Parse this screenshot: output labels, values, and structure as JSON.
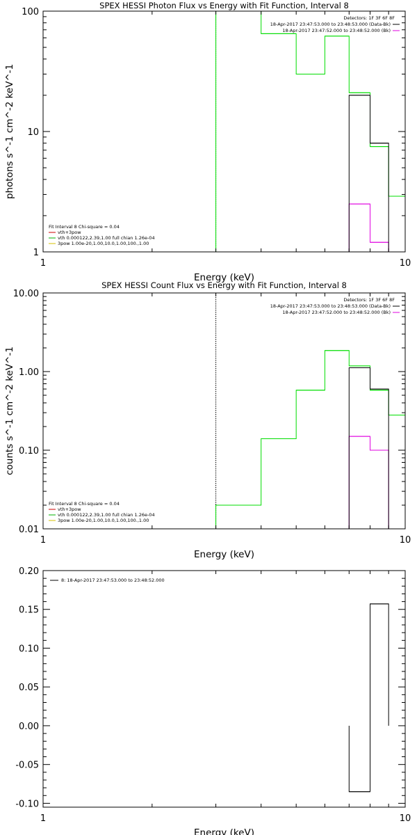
{
  "colors": {
    "data": "#000000",
    "model": "#00dd00",
    "bk": "#e000e0",
    "bk_legend": "#cc0000",
    "comp_thermal": "#00b000",
    "comp_power": "#d6c000",
    "vline_green": "#009000"
  },
  "chart_data": [
    {
      "type": "line",
      "title": "SPEX HESSI Photon Flux vs Energy with Fit Function, Interval 8",
      "xlabel": "Energy (keV)",
      "ylabel": "photons s^-1 cm^-2 keV^-1",
      "xscale": "log",
      "yscale": "log",
      "xlim": [
        1,
        10
      ],
      "ylim": [
        1,
        100
      ],
      "xticks": [
        {
          "v": 1,
          "label": "1"
        },
        {
          "v": 10,
          "label": "10"
        }
      ],
      "yticks": [
        {
          "v": 1,
          "label": "1"
        },
        {
          "v": 10,
          "label": "10"
        },
        {
          "v": 100,
          "label": "100"
        }
      ],
      "vline": {
        "x": 3.0,
        "style": "dotted-green"
      },
      "series": [
        {
          "role": "model",
          "bin_edges": [
            3,
            4,
            5,
            6,
            7,
            8,
            9,
            10
          ],
          "values": [
            100,
            65,
            30,
            62,
            21,
            7.5,
            2.9
          ]
        },
        {
          "role": "data",
          "bin_edges": [
            7,
            8,
            9
          ],
          "values": [
            20,
            8
          ]
        },
        {
          "role": "bk",
          "bin_edges": [
            7,
            8,
            9
          ],
          "values": [
            2.5,
            1.2
          ]
        }
      ],
      "legend_top": {
        "title": "Detectors: 1F 3F 6F 8F",
        "entries": [
          {
            "text": "18-Apr-2017 23:47:53.000 to 23:48:53.000 (Data-Bk)",
            "color_key": "data"
          },
          {
            "text": "18-Apr-2017 23:47:52.000 to 23:48:52.000 (Bk)",
            "color_key": "bk"
          }
        ]
      },
      "legend_bottom": {
        "title": "Fit Interval 8   Chi-square = 0.04",
        "entries": [
          {
            "text": "vth+3pow",
            "color_key": "bk_legend"
          },
          {
            "text": "vth 0.000122,2.39,1.00   full chian 1.26e-04",
            "color_key": "comp_thermal"
          },
          {
            "text": "3pow 1.00e-20,1.00,10.0,1.00,100.,1.00",
            "color_key": "comp_power"
          }
        ]
      }
    },
    {
      "type": "line",
      "title": "SPEX HESSI Count Flux vs Energy with Fit Function, Interval 8",
      "xlabel": "Energy (keV)",
      "ylabel": "counts s^-1 cm^-2 keV^-1",
      "xscale": "log",
      "yscale": "log",
      "xlim": [
        1,
        10
      ],
      "ylim": [
        0.01,
        10
      ],
      "xticks": [
        {
          "v": 1,
          "label": "1"
        },
        {
          "v": 10,
          "label": "10"
        }
      ],
      "yticks": [
        {
          "v": 0.01,
          "label": "0.01"
        },
        {
          "v": 0.1,
          "label": "0.10"
        },
        {
          "v": 1,
          "label": "1.00"
        },
        {
          "v": 10,
          "label": "10.00"
        }
      ],
      "vline": {
        "x": 3.0,
        "style": "dotted-black"
      },
      "series": [
        {
          "role": "model",
          "bin_edges": [
            3,
            4,
            5,
            6,
            7,
            8,
            9,
            10
          ],
          "values": [
            0.02,
            0.14,
            0.58,
            1.85,
            1.18,
            0.58,
            0.28
          ]
        },
        {
          "role": "data",
          "bin_edges": [
            7,
            8,
            9
          ],
          "values": [
            1.12,
            0.6
          ]
        },
        {
          "role": "bk",
          "bin_edges": [
            7,
            8,
            9
          ],
          "values": [
            0.15,
            0.1
          ]
        }
      ],
      "legend_top": {
        "title": "Detectors: 1F 3F 6F 8F",
        "entries": [
          {
            "text": "18-Apr-2017 23:47:53.000 to 23:48:53.000 (Data-Bk)",
            "color_key": "data"
          },
          {
            "text": "18-Apr-2017 23:47:52.000 to 23:48:52.000 (Bk)",
            "color_key": "bk"
          }
        ]
      },
      "legend_bottom": {
        "title": "Fit Interval 8   Chi-square = 0.04",
        "entries": [
          {
            "text": "vth+3pow",
            "color_key": "bk_legend"
          },
          {
            "text": "vth 0.000122,2.39,1.00   full chian 1.26e-04",
            "color_key": "comp_thermal"
          },
          {
            "text": "3pow 1.00e-20,1.00,10.0,1.00,100.,1.00",
            "color_key": "comp_power"
          }
        ]
      }
    },
    {
      "type": "line",
      "title": "",
      "xlabel": "Energy (keV)",
      "ylabel": "",
      "xscale": "log",
      "yscale": "linear",
      "xlim": [
        1,
        10
      ],
      "ylim": [
        -0.105,
        0.2
      ],
      "xticks": [
        {
          "v": 1,
          "label": "1"
        },
        {
          "v": 10,
          "label": "10"
        }
      ],
      "yticks": [
        {
          "v": -0.1,
          "label": "-0.10"
        },
        {
          "v": -0.05,
          "label": "-0.05"
        },
        {
          "v": 0,
          "label": "0.00"
        },
        {
          "v": 0.05,
          "label": "0.05"
        },
        {
          "v": 0.1,
          "label": "0.10"
        },
        {
          "v": 0.15,
          "label": "0.15"
        },
        {
          "v": 0.2,
          "label": "0.20"
        }
      ],
      "series": [
        {
          "role": "data",
          "bin_edges": [
            7,
            8,
            9
          ],
          "values": [
            -0.085,
            0.157
          ]
        }
      ],
      "legend_top_left": {
        "entries": [
          {
            "text": "8: 18-Apr-2017 23:47:53.000 to 23:48:52.000",
            "color_key": "data"
          }
        ]
      }
    }
  ]
}
